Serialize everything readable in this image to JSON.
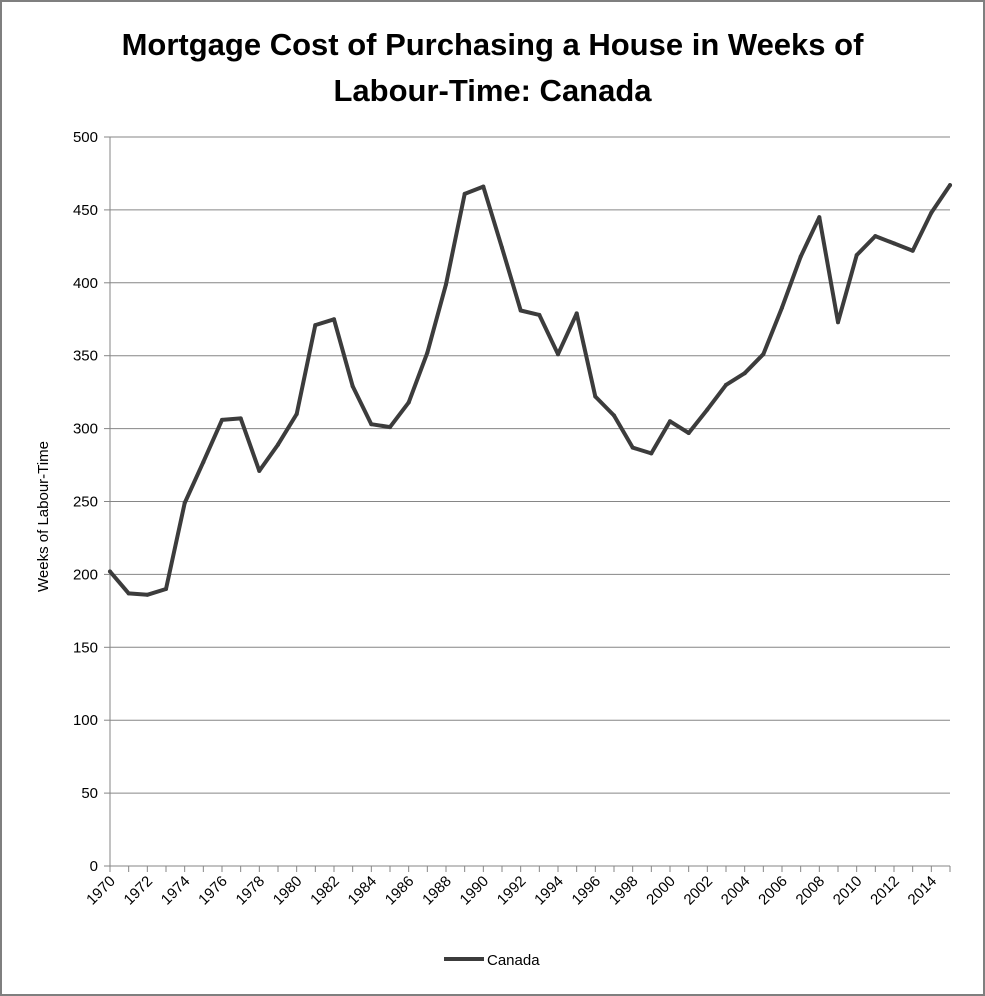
{
  "chart_data": {
    "type": "line",
    "title_lines": [
      "Mortgage Cost of Purchasing a House in Weeks of",
      "Labour-Time: Canada"
    ],
    "xlabel": "",
    "ylabel": "Weeks of Labour-Time",
    "ylim": [
      0,
      500
    ],
    "yticks": [
      0,
      50,
      100,
      150,
      200,
      250,
      300,
      350,
      400,
      450,
      500
    ],
    "xlim": [
      1970,
      2015
    ],
    "xticks": [
      "1970",
      "1972",
      "1974",
      "1976",
      "1978",
      "1980",
      "1982",
      "1984",
      "1986",
      "1988",
      "1990",
      "1992",
      "1994",
      "1996",
      "1998",
      "2000",
      "2002",
      "2004",
      "2006",
      "2008",
      "2010",
      "2012",
      "2014"
    ],
    "grid": "horizontal",
    "legend_position": "bottom",
    "line_color": "#3c3c3c",
    "series": [
      {
        "name": "Canada",
        "x": [
          1970,
          1971,
          1972,
          1973,
          1974,
          1975,
          1976,
          1977,
          1978,
          1979,
          1980,
          1981,
          1982,
          1983,
          1984,
          1985,
          1986,
          1987,
          1988,
          1989,
          1990,
          1991,
          1992,
          1993,
          1994,
          1995,
          1996,
          1997,
          1998,
          1999,
          2000,
          2001,
          2002,
          2003,
          2004,
          2005,
          2006,
          2007,
          2008,
          2009,
          2010,
          2011,
          2012,
          2013,
          2014,
          2015
        ],
        "values": [
          202,
          187,
          186,
          190,
          249,
          277,
          306,
          307,
          271,
          289,
          310,
          371,
          375,
          329,
          303,
          301,
          318,
          352,
          399,
          461,
          466,
          424,
          381,
          378,
          351,
          379,
          322,
          309,
          287,
          283,
          305,
          297,
          313,
          330,
          338,
          351,
          383,
          418,
          445,
          373,
          419,
          432,
          427,
          422,
          448,
          467
        ]
      }
    ]
  }
}
